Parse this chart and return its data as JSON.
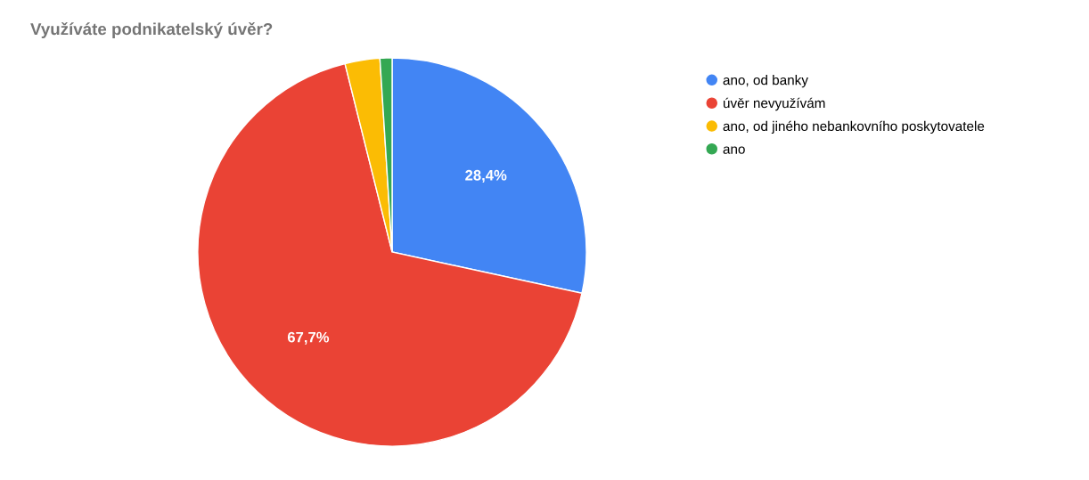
{
  "chart_data": {
    "type": "pie",
    "title": "Využíváte podnikatelský úvěr?",
    "categories": [
      "ano, od banky",
      "úvěr nevyužívám",
      "ano, od jiného nebankovního poskytovatele",
      "ano"
    ],
    "values": [
      28.4,
      67.7,
      2.9,
      1.0
    ],
    "colors": [
      "#4285f4",
      "#ea4335",
      "#fbbc04",
      "#34a853"
    ],
    "value_labels": [
      "28,4%",
      "67,7%",
      null,
      null
    ],
    "legend": "right"
  }
}
